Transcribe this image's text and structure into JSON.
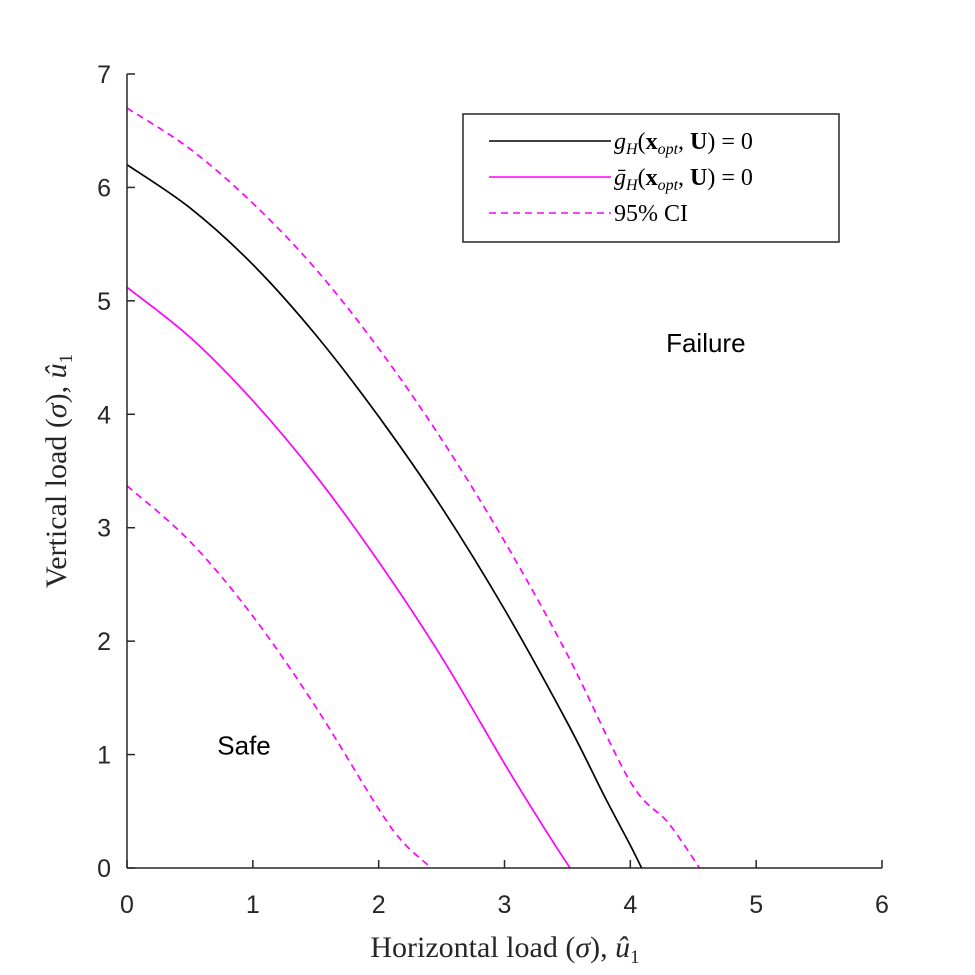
{
  "chart_data": {
    "type": "line",
    "xlabel": "Horizontal load (σ), û₁",
    "ylabel": "Vertical load (σ), û₁",
    "xlim": [
      0,
      6
    ],
    "ylim": [
      0,
      7
    ],
    "xticks": [
      "0",
      "1",
      "2",
      "3",
      "4",
      "5",
      "6"
    ],
    "yticks": [
      "0",
      "1",
      "2",
      "3",
      "4",
      "5",
      "6",
      "7"
    ],
    "grid": false,
    "legend_placement": "top-right",
    "series": [
      {
        "name": "g_H(x_opt, U) = 0",
        "color": "#000000",
        "style": "solid",
        "x": [
          0.0,
          0.5,
          1.0,
          1.5,
          2.0,
          2.5,
          3.0,
          3.5,
          3.8,
          4.0,
          4.09
        ],
        "y": [
          6.2,
          5.82,
          5.32,
          4.7,
          3.98,
          3.18,
          2.28,
          1.28,
          0.62,
          0.2,
          0.0
        ]
      },
      {
        "name": "ḡ_H(x_opt, U) = 0",
        "color": "#ff00ff",
        "style": "solid",
        "x": [
          0.0,
          0.5,
          1.0,
          1.5,
          2.0,
          2.5,
          3.0,
          3.3,
          3.52
        ],
        "y": [
          5.12,
          4.68,
          4.12,
          3.46,
          2.7,
          1.86,
          0.92,
          0.38,
          0.0
        ]
      },
      {
        "name": "95% CI",
        "color": "#ff00ff",
        "style": "dashed",
        "x": [
          0.0,
          0.5,
          1.0,
          1.5,
          2.0,
          2.5,
          3.0,
          3.5,
          4.0,
          4.3,
          4.55
        ],
        "y": [
          6.7,
          6.34,
          5.86,
          5.28,
          4.58,
          3.78,
          2.88,
          1.88,
          0.76,
          0.4,
          0.0
        ]
      },
      {
        "name": "",
        "color": "#ff00ff",
        "style": "dashed",
        "x": [
          0.0,
          0.5,
          1.0,
          1.5,
          2.0,
          2.2,
          2.42
        ],
        "y": [
          3.37,
          2.88,
          2.22,
          1.42,
          0.52,
          0.22,
          0.0
        ]
      }
    ],
    "annotations": [
      {
        "text": "Failure",
        "x": 4.6,
        "y": 4.55
      },
      {
        "text": "Safe",
        "x": 0.93,
        "y": 1.0
      }
    ]
  },
  "legend": {
    "entries": [
      {
        "prefix": "g",
        "sub": "H",
        "arg1": "x",
        "arg1sub": "opt",
        "arg2": "U",
        "tail": ") = 0"
      },
      {
        "prefix": "ḡ",
        "sub": "H",
        "arg1": "x",
        "arg1sub": "opt",
        "arg2": "U",
        "tail": ") = 0"
      },
      {
        "label": "95% CI"
      }
    ]
  },
  "axis_titles": {
    "x_main": "Horizontal load (",
    "x_sigma": "σ",
    "x_mid": "), ",
    "x_var": "û",
    "x_sub": "1",
    "y_main": "Vertical load (",
    "y_sigma": "σ",
    "y_mid": "), ",
    "y_var": "û",
    "y_sub": "1"
  }
}
